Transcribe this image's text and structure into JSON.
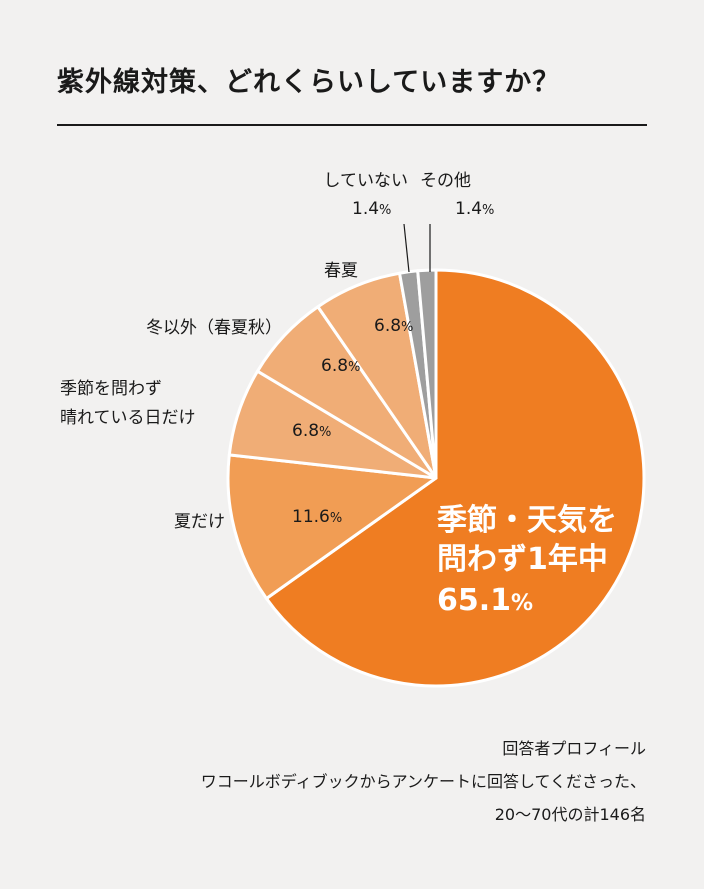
{
  "title": "紫外線対策、どれくらいしていますか？",
  "chart_data": {
    "type": "pie",
    "title": "紫外線対策、どれくらいしていますか？",
    "start_angle_deg": 0,
    "direction": "clockwise",
    "slices": [
      {
        "label_lines": [
          "季節・天気を",
          "問わず1年中"
        ],
        "value": 65.1,
        "value_text": "65.1",
        "unit": "%",
        "color": "#ef7d22",
        "label_inside": true
      },
      {
        "label_lines": [
          "夏だけ"
        ],
        "value": 11.6,
        "value_text": "11.6",
        "unit": "%",
        "color": "#f19d54",
        "label_inside": false
      },
      {
        "label_lines": [
          "季節を問わず",
          "晴れている日だけ"
        ],
        "value": 6.8,
        "value_text": "6.8",
        "unit": "%",
        "color": "#f0ad76",
        "label_inside": false
      },
      {
        "label_lines": [
          "冬以外（春夏秋）"
        ],
        "value": 6.8,
        "value_text": "6.8",
        "unit": "%",
        "color": "#f0ad76",
        "label_inside": false
      },
      {
        "label_lines": [
          "春夏"
        ],
        "value": 6.8,
        "value_text": "6.8",
        "unit": "%",
        "color": "#f0ad76",
        "label_inside": false
      },
      {
        "label_lines": [
          "していない"
        ],
        "value": 1.4,
        "value_text": "1.4",
        "unit": "%",
        "color": "#9e9e9e",
        "label_inside": false
      },
      {
        "label_lines": [
          "その他"
        ],
        "value": 1.4,
        "value_text": "1.4",
        "unit": "%",
        "color": "#9e9e9e",
        "label_inside": false
      }
    ]
  },
  "footnote": {
    "line1": "回答者プロフィール",
    "line2": "ワコールボディブックからアンケートに回答してくださった、",
    "line3": "20～70代の計146名"
  }
}
